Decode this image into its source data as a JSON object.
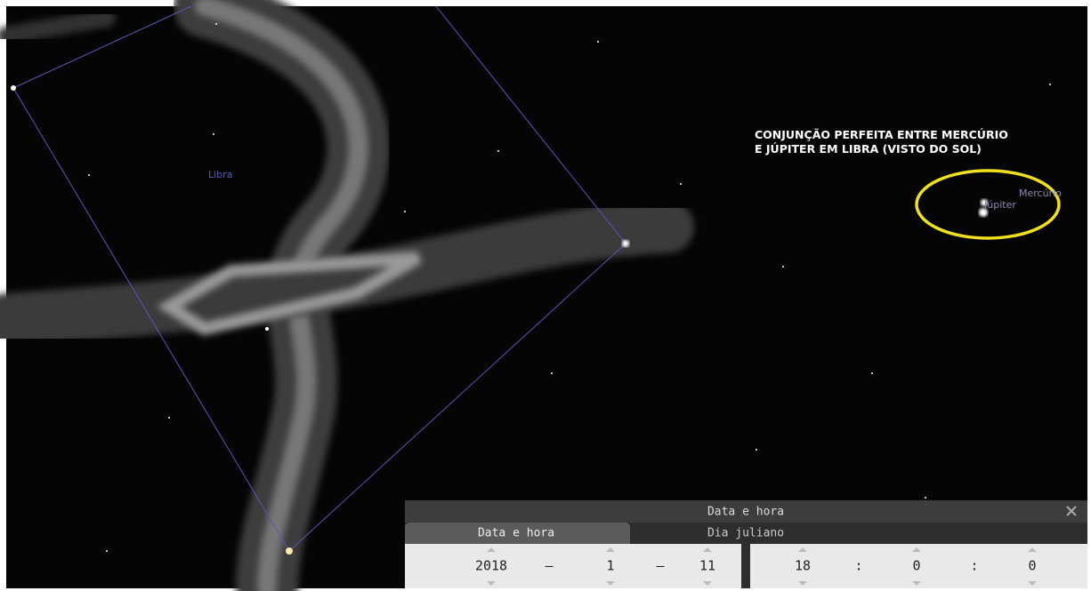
{
  "sky": {
    "annotation": [
      "CONJUNÇÃO PERFEITA ENTRE MERCÚRIO",
      "E JÚPITER EM LIBRA (VISTO DO SOL)"
    ],
    "constellation": "Libra",
    "planets": [
      "Mercúrio",
      "Júpiter"
    ]
  },
  "dialog": {
    "title": "Data e hora",
    "tabs": [
      "Data e hora",
      "Dia juliano"
    ],
    "date": [
      "2018",
      "–",
      "1",
      "–",
      "11"
    ],
    "time": [
      "18",
      ":",
      "0",
      ":",
      "0"
    ]
  }
}
